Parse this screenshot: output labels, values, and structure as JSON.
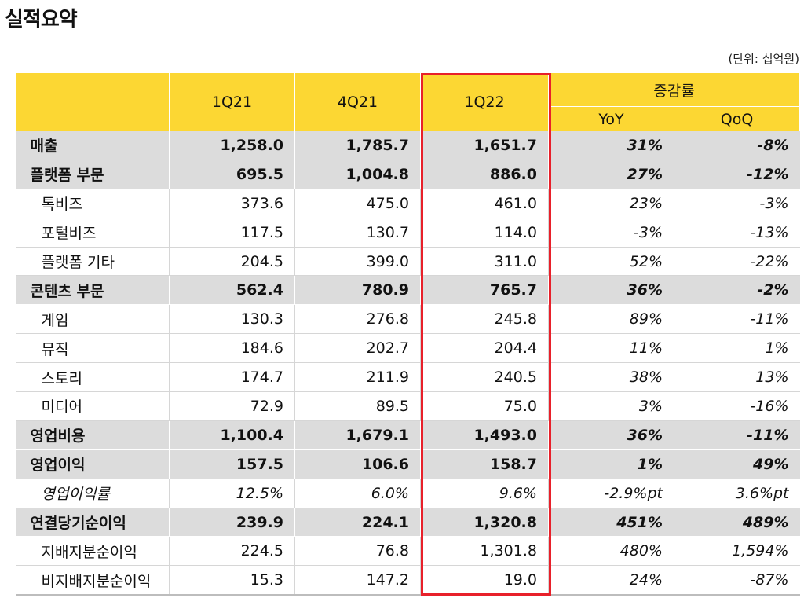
{
  "title": "실적요약",
  "unit_note": "(단위: 십억원)",
  "header": {
    "col1": "1Q21",
    "col2": "4Q21",
    "col3": "1Q22",
    "growth": "증감률",
    "yoy": "YoY",
    "qoq": "QoQ"
  },
  "highlight_color": "#e8202a",
  "header_color": "#fcd733",
  "rows": [
    {
      "label": "매출",
      "v1": "1,258.0",
      "v2": "1,785.7",
      "v3": "1,651.7",
      "yoy": "31%",
      "qoq": "-8%"
    },
    {
      "label": "플랫폼 부문",
      "v1": "695.5",
      "v2": "1,004.8",
      "v3": "886.0",
      "yoy": "27%",
      "qoq": "-12%"
    },
    {
      "label": "톡비즈",
      "v1": "373.6",
      "v2": "475.0",
      "v3": "461.0",
      "yoy": "23%",
      "qoq": "-3%"
    },
    {
      "label": "포털비즈",
      "v1": "117.5",
      "v2": "130.7",
      "v3": "114.0",
      "yoy": "-3%",
      "qoq": "-13%"
    },
    {
      "label": "플랫폼 기타",
      "v1": "204.5",
      "v2": "399.0",
      "v3": "311.0",
      "yoy": "52%",
      "qoq": "-22%"
    },
    {
      "label": "콘텐츠 부문",
      "v1": "562.4",
      "v2": "780.9",
      "v3": "765.7",
      "yoy": "36%",
      "qoq": "-2%"
    },
    {
      "label": "게임",
      "v1": "130.3",
      "v2": "276.8",
      "v3": "245.8",
      "yoy": "89%",
      "qoq": "-11%"
    },
    {
      "label": "뮤직",
      "v1": "184.6",
      "v2": "202.7",
      "v3": "204.4",
      "yoy": "11%",
      "qoq": "1%"
    },
    {
      "label": "스토리",
      "v1": "174.7",
      "v2": "211.9",
      "v3": "240.5",
      "yoy": "38%",
      "qoq": "13%"
    },
    {
      "label": "미디어",
      "v1": "72.9",
      "v2": "89.5",
      "v3": "75.0",
      "yoy": "3%",
      "qoq": "-16%"
    },
    {
      "label": "영업비용",
      "v1": "1,100.4",
      "v2": "1,679.1",
      "v3": "1,493.0",
      "yoy": "36%",
      "qoq": "-11%"
    },
    {
      "label": "영업이익",
      "v1": "157.5",
      "v2": "106.6",
      "v3": "158.7",
      "yoy": "1%",
      "qoq": "49%"
    },
    {
      "label": "영업이익률",
      "v1": "12.5%",
      "v2": "6.0%",
      "v3": "9.6%",
      "yoy": "-2.9%pt",
      "qoq": "3.6%pt"
    },
    {
      "label": "연결당기순이익",
      "v1": "239.9",
      "v2": "224.1",
      "v3": "1,320.8",
      "yoy": "451%",
      "qoq": "489%"
    },
    {
      "label": "지배지분순이익",
      "v1": "224.5",
      "v2": "76.8",
      "v3": "1,301.8",
      "yoy": "480%",
      "qoq": "1,594%"
    },
    {
      "label": "비지배지분순이익",
      "v1": "15.3",
      "v2": "147.2",
      "v3": "19.0",
      "yoy": "24%",
      "qoq": "-87%"
    }
  ]
}
